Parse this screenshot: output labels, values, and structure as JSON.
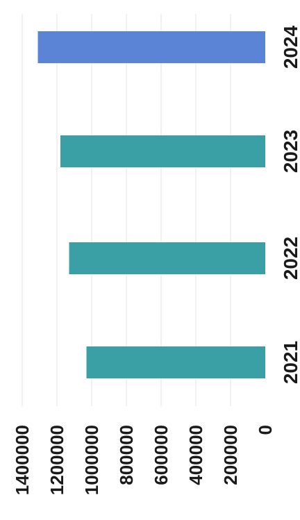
{
  "chart_data": {
    "type": "bar",
    "orientation": "horizontal-rotated",
    "categories": [
      "2021",
      "2022",
      "2023",
      "2024"
    ],
    "values": [
      1030000,
      1130000,
      1180000,
      1310000
    ],
    "colors": [
      "#3aa0a6",
      "#3aa0a6",
      "#3aa0a6",
      "#5b84d6"
    ],
    "ylim": [
      0,
      1400000
    ],
    "ticks": [
      "0",
      "200000",
      "400000",
      "600000",
      "800000",
      "1000000",
      "1200000",
      "1400000"
    ],
    "grid": true,
    "title": "",
    "xlabel": "",
    "ylabel": ""
  }
}
